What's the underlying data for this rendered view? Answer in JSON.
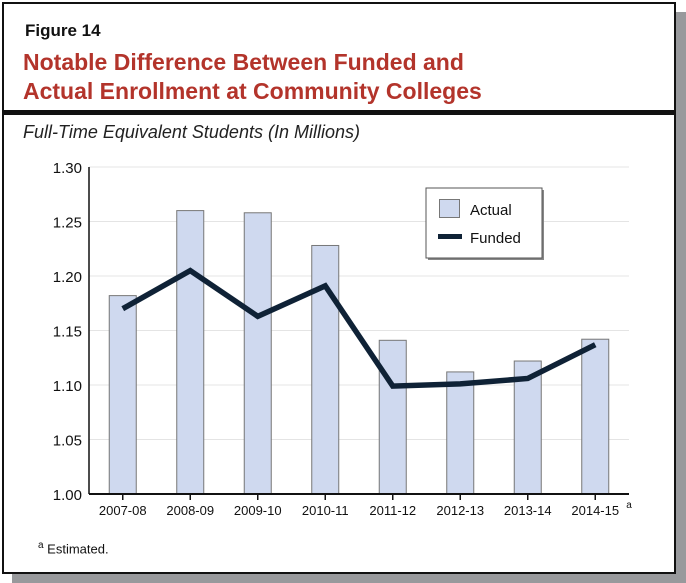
{
  "figure_label": "Figure 14",
  "title_line1": "Notable Difference Between Funded and",
  "title_line2": "Actual Enrollment at Community Colleges",
  "subtitle": "Full-Time Equivalent Students (In Millions)",
  "footnote_marker": "a",
  "footnote_text": " Estimated.",
  "colors": {
    "title": "#b3342b",
    "bar": "#cfd9ef",
    "line": "#0f2236",
    "grid": "#e4e4e4"
  },
  "chart_data": {
    "type": "bar",
    "categories": [
      "2007-08",
      "2008-09",
      "2009-10",
      "2010-11",
      "2011-12",
      "2012-13",
      "2013-14",
      "2014-15"
    ],
    "category_superscripts": [
      "",
      "",
      "",
      "",
      "",
      "",
      "",
      "a"
    ],
    "ylim": [
      1.0,
      1.3
    ],
    "yticks": [
      "1.00",
      "1.05",
      "1.10",
      "1.15",
      "1.20",
      "1.25",
      "1.30"
    ],
    "grid": true,
    "legend_position": "top-right",
    "series": [
      {
        "name": "Actual",
        "type": "bar",
        "values": [
          1.182,
          1.26,
          1.258,
          1.228,
          1.141,
          1.112,
          1.122,
          1.142
        ]
      },
      {
        "name": "Funded",
        "type": "line",
        "values": [
          1.17,
          1.205,
          1.163,
          1.191,
          1.099,
          1.101,
          1.106,
          1.137
        ]
      }
    ]
  }
}
